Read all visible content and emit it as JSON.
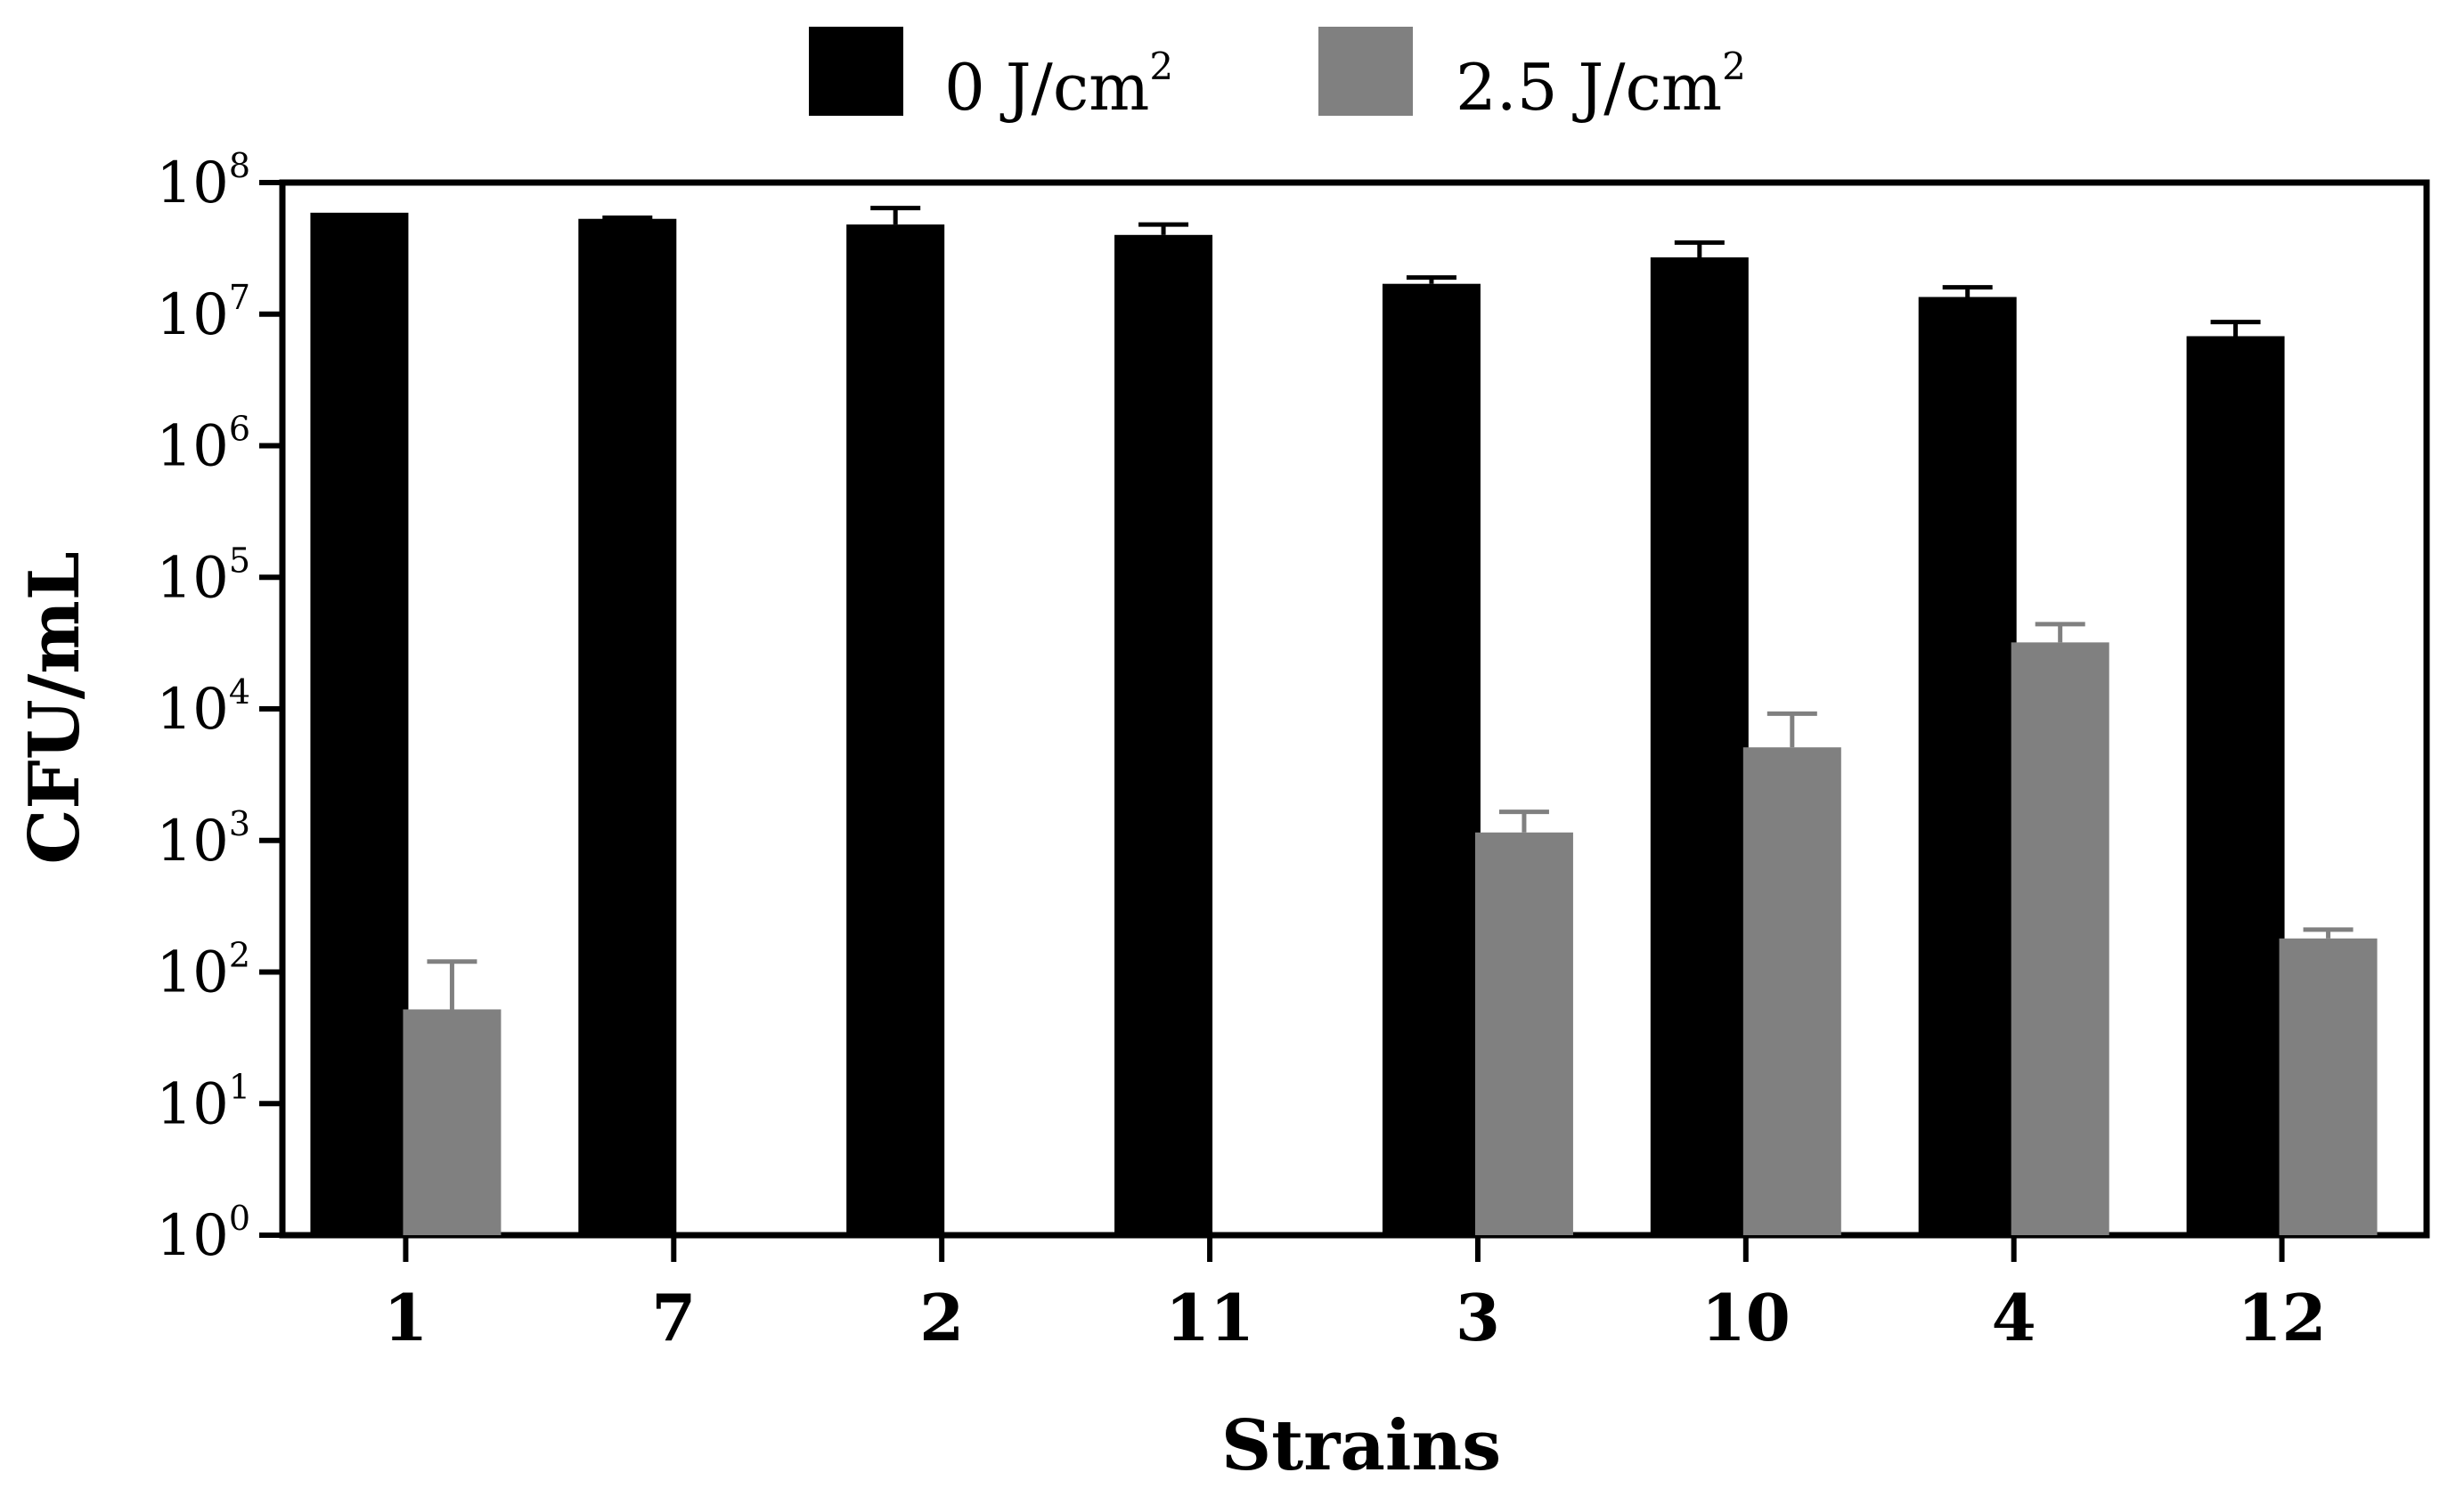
{
  "chart_data": {
    "type": "bar",
    "title": "",
    "xlabel": "Strains",
    "ylabel": "CFU/mL",
    "y_scale": "log",
    "ylim": [
      1,
      100000000
    ],
    "y_ticks": [
      {
        "value": 1,
        "base": "10",
        "exp": "0"
      },
      {
        "value": 10,
        "base": "10",
        "exp": "1"
      },
      {
        "value": 100,
        "base": "10",
        "exp": "2"
      },
      {
        "value": 1000,
        "base": "10",
        "exp": "3"
      },
      {
        "value": 10000,
        "base": "10",
        "exp": "4"
      },
      {
        "value": 100000,
        "base": "10",
        "exp": "5"
      },
      {
        "value": 1000000,
        "base": "10",
        "exp": "6"
      },
      {
        "value": 10000000,
        "base": "10",
        "exp": "7"
      },
      {
        "value": 100000000,
        "base": "10",
        "exp": "8"
      }
    ],
    "categories": [
      "1",
      "7",
      "2",
      "11",
      "3",
      "10",
      "4",
      "12"
    ],
    "legend_placement": "top-center",
    "grid": false,
    "series": [
      {
        "name": "0 J/cm",
        "name_sup": "2",
        "color": "#000000",
        "values": [
          59000000,
          53000000,
          48000000,
          40000000,
          17000000,
          27000000,
          13500000,
          6800000
        ],
        "error_upper": [
          null,
          54000000,
          64000000,
          48000000,
          19000000,
          35000000,
          16000000,
          8700000
        ]
      },
      {
        "name": "2.5 J/cm",
        "name_sup": "2",
        "color": "#808080",
        "values": [
          52,
          null,
          null,
          null,
          1150,
          5100,
          32000,
          180
        ],
        "error_upper": [
          120,
          null,
          null,
          null,
          1650,
          9200,
          44000,
          210
        ]
      }
    ]
  }
}
